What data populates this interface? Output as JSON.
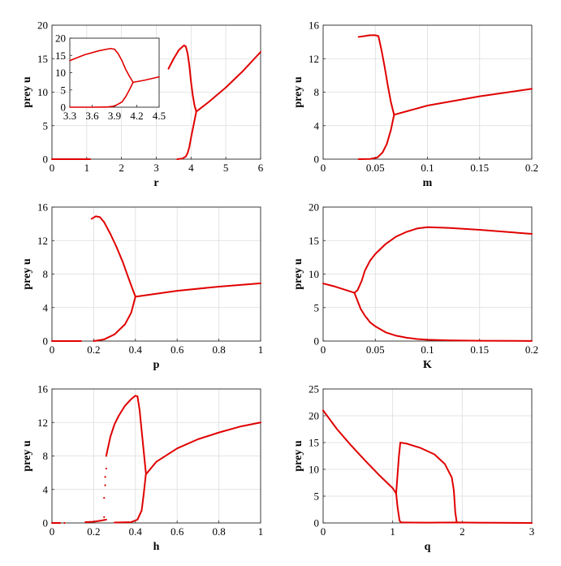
{
  "colors": {
    "series": "#e00000",
    "grid": "#dcdcdc",
    "axis": "#262626"
  },
  "chart_data": [
    {
      "id": "r",
      "type": "scatter",
      "xlabel": "r",
      "ylabel": "prey u",
      "xlim": [
        0,
        6
      ],
      "ylim": [
        0,
        20
      ],
      "xticks": [
        0,
        1,
        2,
        3,
        4,
        5,
        6
      ],
      "yticks": [
        0,
        5,
        10,
        15,
        20
      ],
      "grid": true,
      "segments": [
        {
          "x": [
            0,
            0.5,
            1.1
          ],
          "y": [
            0,
            0,
            0
          ]
        },
        {
          "x": [
            3.35,
            3.5,
            3.65,
            3.8,
            3.85
          ],
          "y": [
            13.5,
            15.0,
            16.3,
            17.0,
            16.8
          ]
        },
        {
          "x": [
            3.85,
            3.9,
            3.95,
            4.0,
            4.05,
            4.1,
            4.15
          ],
          "y": [
            16.8,
            15.8,
            14.0,
            11.5,
            9.5,
            8.0,
            7.1
          ]
        },
        {
          "x": [
            3.6,
            3.75,
            3.85,
            3.9,
            3.95,
            4.0,
            4.05,
            4.1,
            4.15
          ],
          "y": [
            0,
            0.1,
            0.4,
            0.9,
            1.8,
            3.2,
            4.5,
            5.8,
            7.1
          ]
        },
        {
          "x": [
            4.15,
            4.5,
            5.0,
            5.5,
            6.0
          ],
          "y": [
            7.1,
            8.5,
            10.7,
            13.2,
            16.0
          ]
        }
      ],
      "inset": {
        "xlim": [
          3.3,
          4.5
        ],
        "ylim": [
          0,
          20
        ],
        "xticks": [
          3.3,
          3.6,
          3.9,
          4.2,
          4.5
        ],
        "yticks": [
          0,
          5,
          10,
          15,
          20
        ],
        "segments": [
          {
            "x": [
              3.3,
              3.5,
              3.7,
              3.85,
              3.9
            ],
            "y": [
              13.5,
              15.2,
              16.4,
              17.0,
              16.8
            ]
          },
          {
            "x": [
              3.9,
              3.95,
              4.0,
              4.05,
              4.1,
              4.15
            ],
            "y": [
              16.8,
              15.5,
              13.5,
              11.0,
              9.0,
              7.2
            ]
          },
          {
            "x": [
              3.3,
              3.6,
              3.8,
              3.9,
              4.0,
              4.05,
              4.1,
              4.15
            ],
            "y": [
              0,
              0,
              0.05,
              0.3,
              1.5,
              3.0,
              5.0,
              7.2
            ]
          },
          {
            "x": [
              4.15,
              4.3,
              4.5
            ],
            "y": [
              7.2,
              7.8,
              8.8
            ]
          }
        ]
      }
    },
    {
      "id": "m",
      "type": "scatter",
      "xlabel": "m",
      "ylabel": "prey u",
      "xlim": [
        0,
        0.2
      ],
      "ylim": [
        0,
        16
      ],
      "xticks": [
        0,
        0.05,
        0.1,
        0.15,
        0.2
      ],
      "yticks": [
        0,
        4,
        8,
        12,
        16
      ],
      "grid": true,
      "segments": [
        {
          "x": [
            0.034,
            0.04,
            0.045,
            0.05,
            0.053
          ],
          "y": [
            14.6,
            14.7,
            14.8,
            14.8,
            14.7
          ]
        },
        {
          "x": [
            0.053,
            0.056,
            0.059,
            0.062,
            0.065,
            0.068
          ],
          "y": [
            14.7,
            13.0,
            11.0,
            8.8,
            6.8,
            5.3
          ]
        },
        {
          "x": [
            0.034,
            0.045,
            0.052,
            0.057,
            0.061,
            0.065,
            0.068
          ],
          "y": [
            0,
            0.02,
            0.2,
            0.8,
            1.8,
            3.5,
            5.3
          ]
        },
        {
          "x": [
            0.068,
            0.1,
            0.15,
            0.2
          ],
          "y": [
            5.3,
            6.4,
            7.5,
            8.4
          ]
        }
      ]
    },
    {
      "id": "p",
      "type": "scatter",
      "xlabel": "p",
      "ylabel": "prey u",
      "xlim": [
        0,
        1
      ],
      "ylim": [
        0,
        16
      ],
      "xticks": [
        0,
        0.2,
        0.4,
        0.6,
        0.8,
        1
      ],
      "yticks": [
        0,
        4,
        8,
        12,
        16
      ],
      "grid": true,
      "segments": [
        {
          "x": [
            0,
            0.08,
            0.14
          ],
          "y": [
            0,
            0,
            0
          ]
        },
        {
          "x": [
            0.19,
            0.21,
            0.23,
            0.25
          ],
          "y": [
            14.6,
            14.9,
            14.8,
            14.2
          ]
        },
        {
          "x": [
            0.25,
            0.28,
            0.31,
            0.34,
            0.37,
            0.4
          ],
          "y": [
            14.2,
            12.8,
            11.2,
            9.4,
            7.3,
            5.3
          ]
        },
        {
          "x": [
            0.2,
            0.25,
            0.3,
            0.35,
            0.38,
            0.4
          ],
          "y": [
            0,
            0.2,
            0.8,
            2.0,
            3.4,
            5.3
          ]
        },
        {
          "x": [
            0.4,
            0.6,
            0.8,
            1.0
          ],
          "y": [
            5.3,
            6.0,
            6.5,
            6.9
          ]
        }
      ]
    },
    {
      "id": "K",
      "type": "scatter",
      "xlabel": "K",
      "ylabel": "prey u",
      "xlim": [
        0,
        0.2
      ],
      "ylim": [
        0,
        20
      ],
      "xticks": [
        0,
        0.05,
        0.1,
        0.15,
        0.2
      ],
      "yticks": [
        0,
        5,
        10,
        15,
        20
      ],
      "grid": true,
      "segments": [
        {
          "x": [
            0,
            0.01,
            0.02,
            0.03
          ],
          "y": [
            8.6,
            8.2,
            7.7,
            7.2
          ]
        },
        {
          "x": [
            0.03,
            0.033,
            0.037,
            0.04,
            0.045,
            0.05,
            0.06,
            0.07,
            0.08,
            0.09,
            0.1,
            0.12,
            0.15,
            0.2
          ],
          "y": [
            7.2,
            7.6,
            9.0,
            10.5,
            12.0,
            13.0,
            14.5,
            15.6,
            16.3,
            16.8,
            17.0,
            16.9,
            16.6,
            16.0
          ]
        },
        {
          "x": [
            0.03,
            0.033,
            0.036,
            0.04,
            0.045,
            0.05,
            0.06,
            0.07,
            0.08,
            0.09,
            0.1,
            0.12,
            0.15,
            0.2
          ],
          "y": [
            7.2,
            6.0,
            4.8,
            3.8,
            2.8,
            2.2,
            1.3,
            0.8,
            0.5,
            0.3,
            0.2,
            0.1,
            0.05,
            0.02
          ]
        }
      ]
    },
    {
      "id": "h",
      "type": "scatter",
      "xlabel": "h",
      "ylabel": "prey u",
      "xlim": [
        0,
        1
      ],
      "ylim": [
        0,
        16
      ],
      "xticks": [
        0,
        0.2,
        0.4,
        0.6,
        0.8,
        1
      ],
      "yticks": [
        0,
        4,
        8,
        12,
        16
      ],
      "grid": true,
      "segments": [
        {
          "x": [
            0,
            0.04
          ],
          "y": [
            0,
            0
          ]
        },
        {
          "x": [
            0.16,
            0.2,
            0.24,
            0.26
          ],
          "y": [
            0.1,
            0.15,
            0.3,
            0.4
          ]
        },
        {
          "x": [
            0.26,
            0.28,
            0.3,
            0.32,
            0.35,
            0.38,
            0.4,
            0.41
          ],
          "y": [
            8.0,
            10.3,
            11.8,
            12.8,
            14.0,
            14.8,
            15.2,
            15.1
          ]
        },
        {
          "x": [
            0.41,
            0.42,
            0.43,
            0.44,
            0.45
          ],
          "y": [
            15.1,
            13.5,
            11.0,
            8.5,
            6.0
          ]
        },
        {
          "x": [
            0.3,
            0.38,
            0.41,
            0.43,
            0.44,
            0.45
          ],
          "y": [
            0.05,
            0.1,
            0.4,
            1.5,
            3.5,
            5.8
          ]
        },
        {
          "x": [
            0.45,
            0.5,
            0.6,
            0.7,
            0.8,
            0.9,
            1.0
          ],
          "y": [
            5.8,
            7.3,
            8.9,
            10.0,
            10.8,
            11.5,
            12.0
          ]
        }
      ],
      "points": {
        "x": [
          0.06,
          0.25,
          0.25,
          0.255,
          0.255,
          0.26
        ],
        "y": [
          0,
          0.7,
          3.0,
          4.5,
          5.5,
          6.5
        ]
      }
    },
    {
      "id": "q",
      "type": "scatter",
      "xlabel": "q",
      "ylabel": "prey u",
      "xlim": [
        0,
        3
      ],
      "ylim": [
        0,
        25
      ],
      "xticks": [
        0,
        1,
        2,
        3
      ],
      "yticks": [
        0,
        5,
        10,
        15,
        20,
        25
      ],
      "grid": true,
      "segments": [
        {
          "x": [
            0,
            0.2,
            0.4,
            0.6,
            0.8,
            1.0,
            1.05
          ],
          "y": [
            21,
            17.5,
            14.5,
            11.7,
            9.0,
            6.5,
            5.5
          ]
        },
        {
          "x": [
            1.05,
            1.07,
            1.09,
            1.1,
            1.12
          ],
          "y": [
            5.5,
            3.0,
            1.2,
            0.4,
            0.1
          ]
        },
        {
          "x": [
            1.05,
            1.07,
            1.09,
            1.11
          ],
          "y": [
            5.5,
            9.0,
            12.5,
            15.0
          ]
        },
        {
          "x": [
            1.11,
            1.2,
            1.4,
            1.6,
            1.75,
            1.85,
            1.88
          ],
          "y": [
            15.0,
            14.8,
            14.0,
            12.8,
            11.0,
            8.5,
            6.0
          ]
        },
        {
          "x": [
            1.88,
            1.9,
            1.92
          ],
          "y": [
            6.0,
            2.0,
            0.2
          ]
        },
        {
          "x": [
            1.12,
            1.5,
            1.9,
            2.2,
            3.0
          ],
          "y": [
            0.1,
            0.05,
            0.1,
            0.05,
            0
          ]
        }
      ]
    }
  ]
}
